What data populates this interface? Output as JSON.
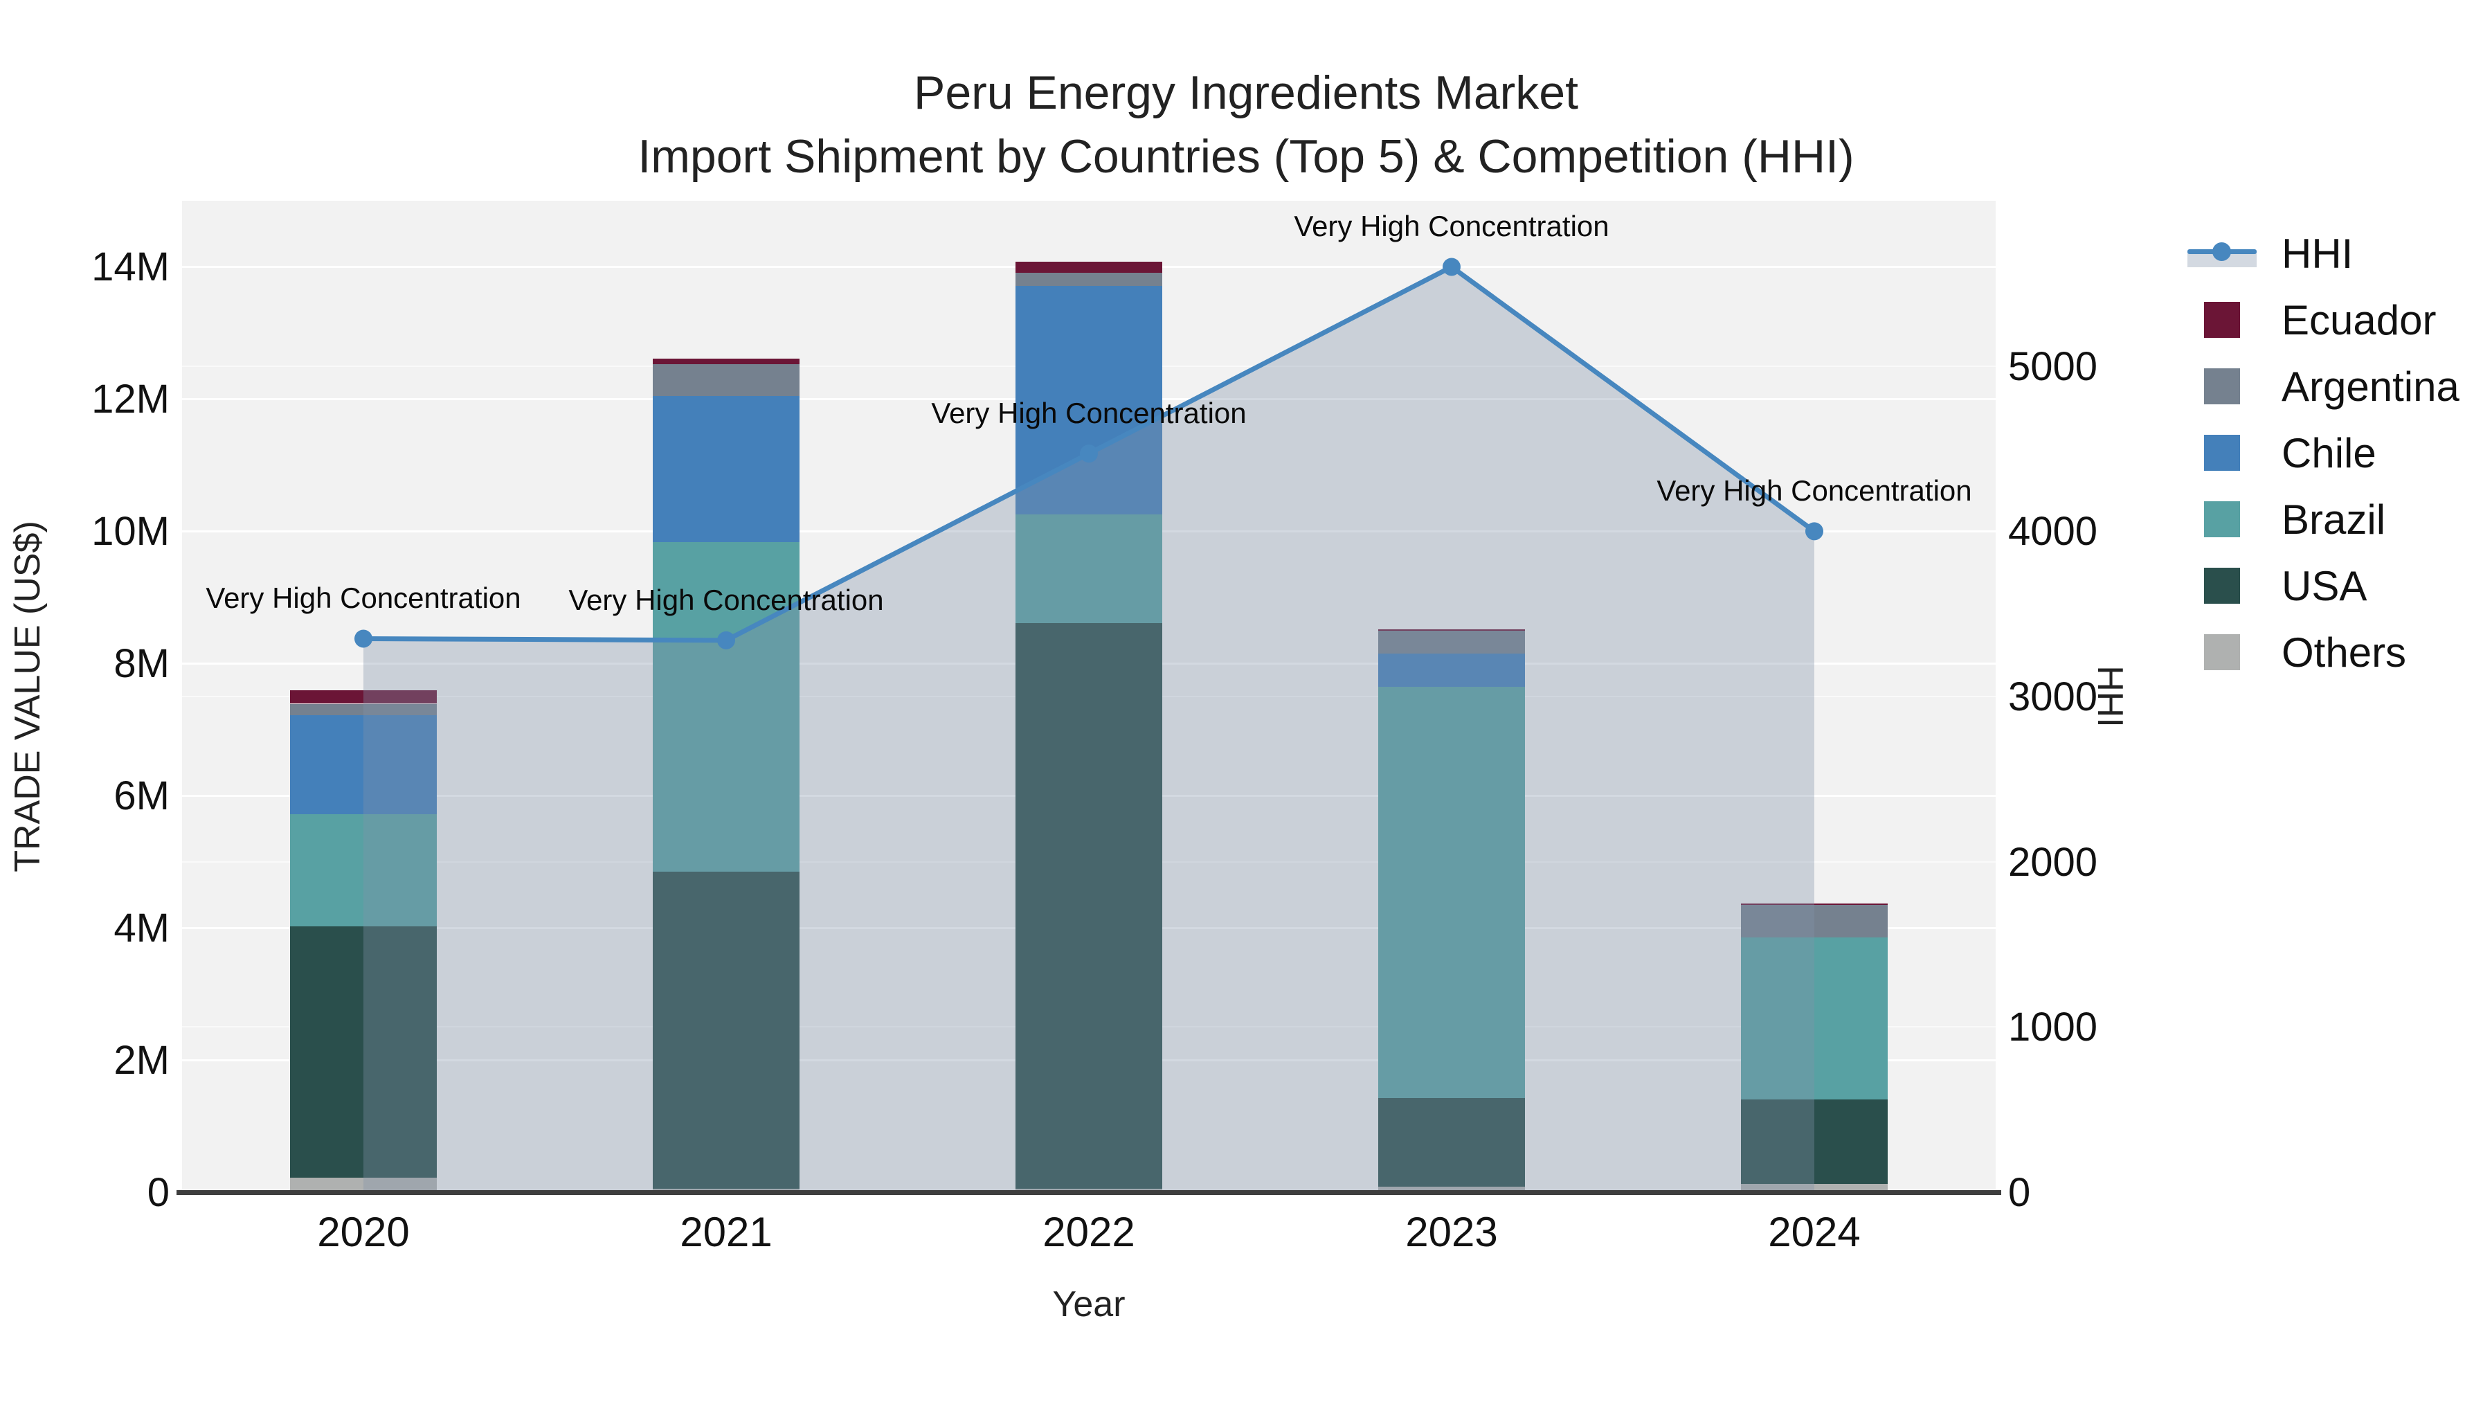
{
  "title": "Peru Energy Ingredients Market",
  "subtitle": "Import Shipment by Countries (Top 5) & Competition (HHI)",
  "chart_data": {
    "type": "bar",
    "subtype": "stacked-bars-with-line-on-secondary-axis",
    "categories": [
      "2020",
      "2021",
      "2022",
      "2023",
      "2024"
    ],
    "xlabel": "Year",
    "ylabel_left": "TRADE VALUE (US$)",
    "ylabel_right": "HHI",
    "ylim_left": [
      0,
      15000000
    ],
    "ylim_right": [
      0,
      6000
    ],
    "grid": true,
    "legend_position": "right",
    "stack_order_bottom_to_top": [
      "Others",
      "USA",
      "Brazil",
      "Chile",
      "Argentina",
      "Ecuador"
    ],
    "series": [
      {
        "name": "Others",
        "color": "#afb1b0",
        "values": [
          220000,
          50000,
          50000,
          80000,
          130000
        ]
      },
      {
        "name": "USA",
        "color": "#2a4f4c",
        "values": [
          3800000,
          4800000,
          8560000,
          1340000,
          1270000
        ]
      },
      {
        "name": "Brazil",
        "color": "#58a1a3",
        "values": [
          1700000,
          4990000,
          1640000,
          6230000,
          2450000
        ]
      },
      {
        "name": "Chile",
        "color": "#4480ba",
        "values": [
          1500000,
          2210000,
          3460000,
          500000,
          0
        ]
      },
      {
        "name": "Argentina",
        "color": "#75818f",
        "values": [
          170000,
          480000,
          200000,
          350000,
          500000
        ]
      },
      {
        "name": "Ecuador",
        "color": "#6b1536",
        "values": [
          200000,
          80000,
          170000,
          20000,
          20000
        ]
      }
    ],
    "line_series": {
      "name": "HHI",
      "color": "#4787bf",
      "area_fill": "rgba(128,145,170,0.35)",
      "values": [
        3350,
        3340,
        4470,
        5600,
        4000
      ],
      "annotations": [
        "Very High Concentration",
        "Very High Concentration",
        "Very High Concentration",
        "Very High Concentration",
        "Very High Concentration"
      ]
    },
    "y_left_ticks": {
      "labels": [
        "0",
        "2M",
        "4M",
        "6M",
        "8M",
        "10M",
        "12M",
        "14M"
      ],
      "values": [
        0,
        2000000,
        4000000,
        6000000,
        8000000,
        10000000,
        12000000,
        14000000
      ]
    },
    "y_right_ticks": {
      "labels": [
        "0",
        "1000",
        "2000",
        "3000",
        "4000",
        "5000"
      ],
      "values": [
        0,
        1000,
        2000,
        3000,
        4000,
        5000
      ]
    },
    "legend_order": [
      "HHI",
      "Ecuador",
      "Argentina",
      "Chile",
      "Brazil",
      "USA",
      "Others"
    ]
  }
}
